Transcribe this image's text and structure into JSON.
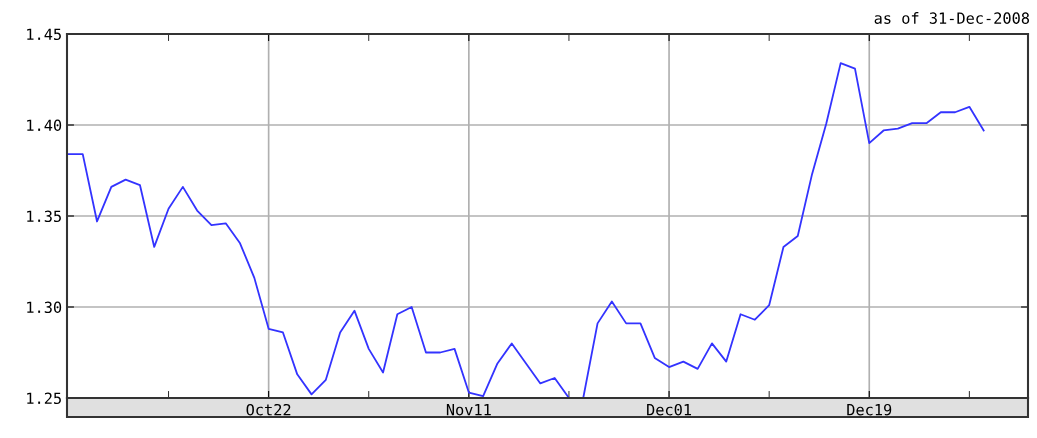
{
  "chart_data": {
    "type": "line",
    "annotations": [
      "as of 31-Dec-2008"
    ],
    "categories": [
      null,
      null,
      null,
      null,
      null,
      null,
      null,
      null,
      null,
      null,
      null,
      null,
      null,
      null,
      "Oct22",
      null,
      null,
      null,
      null,
      null,
      null,
      null,
      null,
      null,
      null,
      null,
      null,
      null,
      "Nov11",
      null,
      null,
      null,
      null,
      null,
      null,
      null,
      null,
      null,
      null,
      null,
      null,
      null,
      "Dec01",
      null,
      null,
      null,
      null,
      null,
      null,
      null,
      null,
      null,
      null,
      null,
      null,
      null,
      "Dec19",
      null,
      null,
      null,
      null,
      null,
      null,
      null,
      null
    ],
    "series": [
      {
        "color": "#3333ff",
        "values": [
          1.384,
          1.384,
          1.347,
          1.366,
          1.37,
          1.367,
          1.333,
          1.354,
          1.366,
          1.353,
          1.345,
          1.346,
          1.335,
          1.316,
          1.288,
          1.286,
          1.263,
          1.252,
          1.26,
          1.286,
          1.298,
          1.277,
          1.264,
          1.296,
          1.3,
          1.275,
          1.275,
          1.277,
          1.253,
          1.251,
          1.269,
          1.28,
          1.269,
          1.258,
          1.261,
          1.25,
          1.25,
          1.291,
          1.303,
          1.291,
          1.291,
          1.272,
          1.267,
          1.27,
          1.266,
          1.28,
          1.27,
          1.296,
          1.293,
          1.301,
          1.333,
          1.339,
          1.373,
          1.401,
          1.434,
          1.431,
          1.39,
          1.397,
          1.398,
          1.401,
          1.401,
          1.407,
          1.407,
          1.41,
          1.397
        ]
      }
    ],
    "ylim": [
      1.25,
      1.45
    ],
    "yticks": [
      {
        "value": 1.25,
        "label": "1.25"
      },
      {
        "value": 1.3,
        "label": "1.30"
      },
      {
        "value": 1.35,
        "label": "1.35"
      },
      {
        "value": 1.4,
        "label": "1.40"
      },
      {
        "value": 1.45,
        "label": "1.45"
      }
    ],
    "grid": true,
    "marker": "none",
    "line_style": "solid"
  }
}
